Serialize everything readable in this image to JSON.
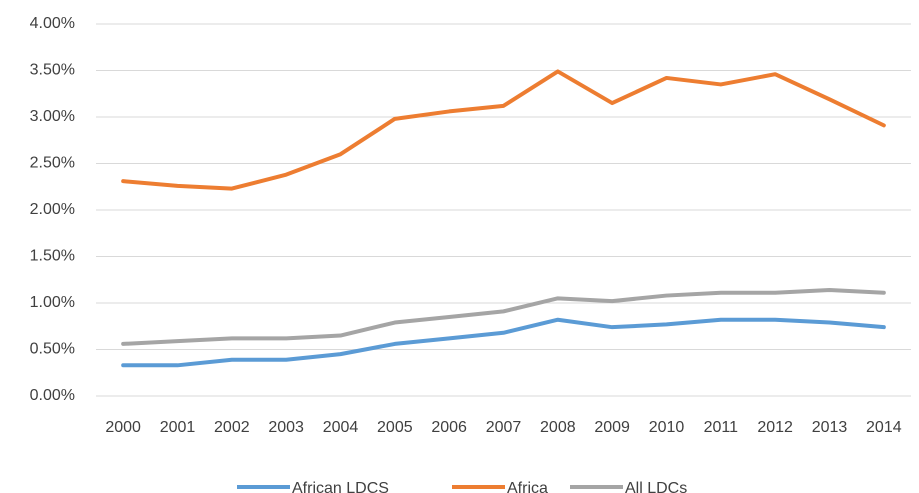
{
  "chart_data": {
    "type": "line",
    "categories": [
      "2000",
      "2001",
      "2002",
      "2003",
      "2004",
      "2005",
      "2006",
      "2007",
      "2008",
      "2009",
      "2010",
      "2011",
      "2012",
      "2013",
      "2014"
    ],
    "series": [
      {
        "name": "African LDCS",
        "color": "#5b9bd5",
        "values": [
          0.33,
          0.33,
          0.39,
          0.39,
          0.45,
          0.56,
          0.62,
          0.68,
          0.82,
          0.74,
          0.77,
          0.82,
          0.82,
          0.79,
          0.74
        ]
      },
      {
        "name": "Africa",
        "color": "#ed7d31",
        "values": [
          2.31,
          2.26,
          2.23,
          2.38,
          2.6,
          2.98,
          3.06,
          3.12,
          3.49,
          3.15,
          3.42,
          3.35,
          3.46,
          3.19,
          2.91
        ]
      },
      {
        "name": "All LDCs",
        "color": "#a5a5a5",
        "values": [
          0.56,
          0.59,
          0.62,
          0.62,
          0.65,
          0.79,
          0.85,
          0.91,
          1.05,
          1.02,
          1.08,
          1.11,
          1.11,
          1.14,
          1.11
        ]
      }
    ],
    "ylim": [
      0,
      4
    ],
    "yticks": [
      {
        "value": 0,
        "label": "0.00%"
      },
      {
        "value": 0.5,
        "label": "0.50%"
      },
      {
        "value": 1,
        "label": "1.00%"
      },
      {
        "value": 1.5,
        "label": "1.50%"
      },
      {
        "value": 2,
        "label": "2.00%"
      },
      {
        "value": 2.5,
        "label": "2.50%"
      },
      {
        "value": 3,
        "label": "3.00%"
      },
      {
        "value": 3.5,
        "label": "3.50%"
      },
      {
        "value": 4,
        "label": "4.00%"
      }
    ],
    "grid": true,
    "legend": "bottom"
  }
}
